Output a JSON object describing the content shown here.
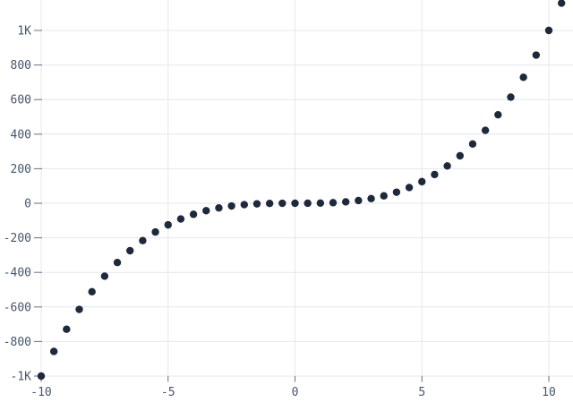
{
  "chart": {
    "background_color": "#ffffff",
    "point_color": "#1e293b",
    "grid_color": "#e4e7ec",
    "tick_color": "#667085",
    "label_color": "#475569"
  },
  "chart_data": {
    "type": "scatter",
    "title": "",
    "xlabel": "",
    "ylabel": "",
    "grid": true,
    "legend": false,
    "x_step": 0.5,
    "x": [
      -10,
      -9.5,
      -9,
      -8.5,
      -8,
      -7.5,
      -7,
      -6.5,
      -6,
      -5.5,
      -5,
      -4.5,
      -4,
      -3.5,
      -3,
      -2.5,
      -2,
      -1.5,
      -1,
      -0.5,
      0,
      0.5,
      1,
      1.5,
      2,
      2.5,
      3,
      3.5,
      4,
      4.5,
      5,
      5.5,
      6,
      6.5,
      7,
      7.5,
      8,
      8.5,
      9,
      9.5,
      10,
      10.5
    ],
    "y": [
      -1000,
      -857.375,
      -729,
      -614.125,
      -512,
      -421.875,
      -343,
      -274.625,
      -216,
      -166.375,
      -125,
      -91.125,
      -64,
      -42.875,
      -27,
      -15.625,
      -8,
      -3.375,
      -1,
      -0.125,
      0,
      0.125,
      1,
      3.375,
      8,
      15.625,
      27,
      42.875,
      64,
      91.125,
      125,
      166.375,
      216,
      274.625,
      343,
      421.875,
      512,
      614.125,
      729,
      857.375,
      1000,
      1157.625
    ],
    "x_ticks": {
      "values": [
        -10,
        -5,
        0,
        5,
        10
      ],
      "labels": [
        "-10",
        "-5",
        "0",
        "5",
        "10"
      ]
    },
    "y_ticks": {
      "values": [
        1000,
        800,
        600,
        400,
        200,
        0,
        -200,
        -400,
        -600,
        -800,
        -1000
      ],
      "labels": [
        "1K",
        "800",
        "600",
        "400",
        "200",
        "0",
        "-200",
        "-400",
        "-600",
        "-800",
        "-1K"
      ]
    },
    "xlim": [
      -10.05,
      10.95
    ],
    "ylim": [
      -1040,
      1176
    ]
  }
}
